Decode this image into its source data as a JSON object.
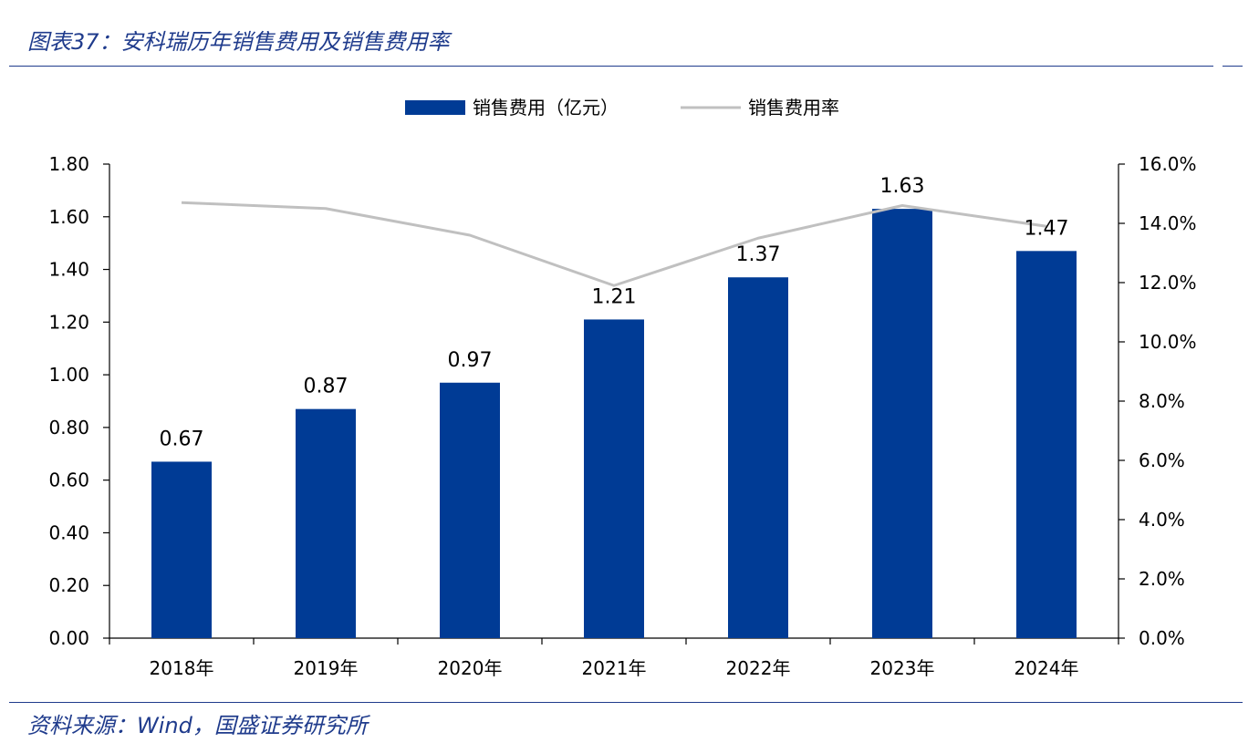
{
  "header": {
    "title": "图表37：安科瑞历年销售费用及销售费用率"
  },
  "footer": {
    "source": "资料来源：Wind，国盛证券研究所"
  },
  "colors": {
    "bar": "#003b95",
    "line": "#c0c0c0",
    "accent": "#1f3b8c"
  },
  "chart_data": {
    "type": "bar",
    "categories": [
      "2018年",
      "2019年",
      "2020年",
      "2021年",
      "2022年",
      "2023年",
      "2024年"
    ],
    "series": [
      {
        "name": "销售费用（亿元）",
        "type": "bar",
        "axis": "left",
        "values": [
          0.67,
          0.87,
          0.97,
          1.21,
          1.37,
          1.63,
          1.47
        ],
        "labels": [
          "0.67",
          "0.87",
          "0.97",
          "1.21",
          "1.37",
          "1.63",
          "1.47"
        ]
      },
      {
        "name": "销售费用率",
        "type": "line",
        "axis": "right",
        "values": [
          14.7,
          14.5,
          13.6,
          11.9,
          13.5,
          14.6,
          13.9
        ]
      }
    ],
    "ylim": [
      0,
      1.8
    ],
    "y_ticks": [
      "0.00",
      "0.20",
      "0.40",
      "0.60",
      "0.80",
      "1.00",
      "1.20",
      "1.40",
      "1.60",
      "1.80"
    ],
    "y2lim": [
      0,
      16
    ],
    "y2_ticks": [
      "0.0%",
      "2.0%",
      "4.0%",
      "6.0%",
      "8.0%",
      "10.0%",
      "12.0%",
      "14.0%",
      "16.0%"
    ],
    "legend_position": "top-center",
    "grid": false
  }
}
